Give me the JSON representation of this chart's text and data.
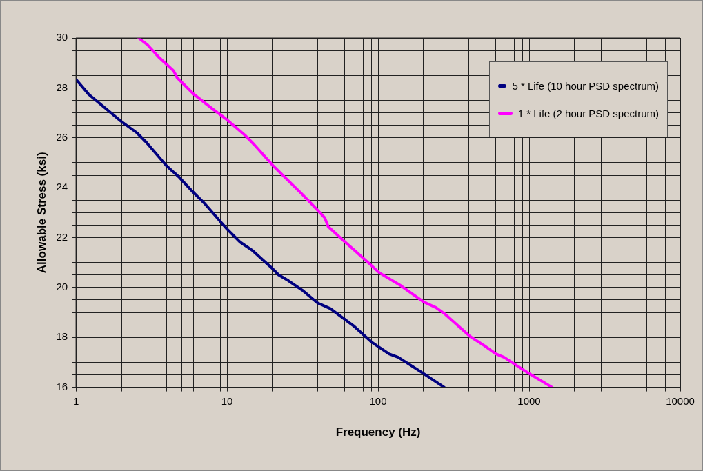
{
  "chart_data": {
    "type": "line",
    "xlabel": "Frequency (Hz)",
    "ylabel": "Allowable Stress (ksi)",
    "log": "x",
    "grid": true,
    "legend": "top right",
    "marker": "none",
    "line_style": "solid",
    "xlim": [
      1,
      10000
    ],
    "xticks": [
      1,
      {
        "value": 2,
        "label": null
      },
      {
        "value": 3,
        "label": null
      },
      {
        "value": 4,
        "label": null
      },
      {
        "value": 5,
        "label": null
      },
      {
        "value": 6,
        "label": null
      },
      {
        "value": 7,
        "label": null
      },
      {
        "value": 8,
        "label": null
      },
      {
        "value": 9,
        "label": null
      },
      10,
      {
        "value": 20,
        "label": null
      },
      {
        "value": 30,
        "label": null
      },
      {
        "value": 40,
        "label": null
      },
      {
        "value": 50,
        "label": null
      },
      {
        "value": 60,
        "label": null
      },
      {
        "value": 70,
        "label": null
      },
      {
        "value": 80,
        "label": null
      },
      {
        "value": 90,
        "label": null
      },
      100,
      {
        "value": 200,
        "label": null
      },
      {
        "value": 300,
        "label": null
      },
      {
        "value": 400,
        "label": null
      },
      {
        "value": 500,
        "label": null
      },
      {
        "value": 600,
        "label": null
      },
      {
        "value": 700,
        "label": null
      },
      {
        "value": 800,
        "label": null
      },
      {
        "value": 900,
        "label": null
      },
      1000,
      {
        "value": 2000,
        "label": null
      },
      {
        "value": 3000,
        "label": null
      },
      {
        "value": 4000,
        "label": null
      },
      {
        "value": 5000,
        "label": null
      },
      {
        "value": 6000,
        "label": null
      },
      {
        "value": 7000,
        "label": null
      },
      {
        "value": 8000,
        "label": null
      },
      {
        "value": 9000,
        "label": null
      },
      10000
    ],
    "ylim": [
      16,
      30
    ],
    "yticks": [
      16,
      {
        "value": 16.5,
        "label": null
      },
      {
        "value": 17,
        "label": null
      },
      {
        "value": 17.5,
        "label": null
      },
      18,
      {
        "value": 18.5,
        "label": null
      },
      {
        "value": 19,
        "label": null
      },
      {
        "value": 19.5,
        "label": null
      },
      20,
      {
        "value": 20.5,
        "label": null
      },
      {
        "value": 21,
        "label": null
      },
      {
        "value": 21.5,
        "label": null
      },
      22,
      {
        "value": 22.5,
        "label": null
      },
      {
        "value": 23,
        "label": null
      },
      {
        "value": 23.5,
        "label": null
      },
      24,
      {
        "value": 24.5,
        "label": null
      },
      {
        "value": 25,
        "label": null
      },
      {
        "value": 25.5,
        "label": null
      },
      26,
      {
        "value": 26.5,
        "label": null
      },
      {
        "value": 27,
        "label": null
      },
      {
        "value": 27.5,
        "label": null
      },
      28,
      {
        "value": 28.5,
        "label": null
      },
      {
        "value": 29,
        "label": null
      },
      {
        "value": 29.5,
        "label": null
      },
      30
    ],
    "series": [
      {
        "name": "5 * Life (10 hour PSD spectrum)",
        "color": "#000080",
        "x": [
          1,
          1.21,
          1.98,
          2.53,
          2.92,
          3.97,
          4.84,
          5.9,
          7.07,
          9.1,
          10,
          12.2,
          14.6,
          20.1,
          22,
          25.5,
          31.5,
          39.7,
          48.4,
          69.2,
          90.6,
          118,
          136,
          199,
          274
        ],
        "values": [
          28.34,
          27.75,
          26.67,
          26.2,
          25.82,
          24.88,
          24.41,
          23.85,
          23.38,
          22.62,
          22.34,
          21.82,
          21.5,
          20.74,
          20.5,
          20.27,
          19.89,
          19.38,
          19.15,
          18.45,
          17.81,
          17.34,
          17.2,
          16.56,
          16.0
        ]
      },
      {
        "name": "1 * Life (2 hour PSD spectrum)",
        "color": "#ff00ff",
        "x": [
          2.6,
          2.97,
          3.56,
          4.42,
          4.67,
          6.01,
          7.88,
          10,
          13.1,
          15.1,
          20.1,
          24.1,
          31.5,
          35.9,
          44.3,
          46.7,
          58.9,
          69.2,
          102.5,
          141.5,
          199,
          242,
          279,
          406,
          504,
          602,
          683,
          993,
          1419
        ],
        "values": [
          30.0,
          29.73,
          29.21,
          28.69,
          28.41,
          27.75,
          27.19,
          26.72,
          26.11,
          25.73,
          24.89,
          24.42,
          23.73,
          23.38,
          22.8,
          22.44,
          21.88,
          21.51,
          20.58,
          20.07,
          19.43,
          19.19,
          18.92,
          18.04,
          17.67,
          17.34,
          17.2,
          16.56,
          16.0
        ]
      }
    ]
  }
}
